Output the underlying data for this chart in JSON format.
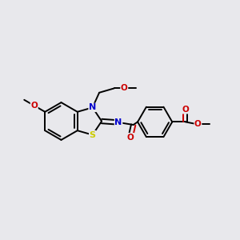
{
  "bg_color": "#e8e8ec",
  "bond_color": "#000000",
  "N_color": "#0000cc",
  "S_color": "#cccc00",
  "O_color": "#cc0000",
  "lw": 1.4,
  "figsize": [
    3.0,
    3.0
  ],
  "dpi": 100,
  "xlim": [
    0,
    10
  ],
  "ylim": [
    0,
    10
  ]
}
